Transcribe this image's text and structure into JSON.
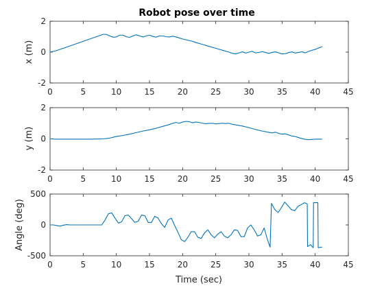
{
  "chart_data": [
    {
      "type": "line",
      "title": "Robot pose over time",
      "xlabel": "",
      "ylabel": "x (m)",
      "xlim": [
        0,
        45
      ],
      "ylim": [
        -2,
        2
      ],
      "xticks": [
        "0",
        "5",
        "10",
        "15",
        "20",
        "25",
        "30",
        "35",
        "40",
        "45"
      ],
      "yticks": [
        "-2",
        "0",
        "2"
      ],
      "grid": false,
      "series": [
        {
          "color": "#0072BD",
          "x": [
            0,
            1,
            2,
            3,
            4,
            5,
            6,
            7,
            8,
            8.5,
            9,
            9.5,
            10,
            10.5,
            11,
            11.5,
            12,
            12.5,
            13,
            13.5,
            14,
            14.5,
            15,
            15.5,
            16,
            16.5,
            17,
            17.5,
            18,
            18.5,
            19,
            19.5,
            20,
            20.5,
            21,
            21.5,
            22,
            23,
            24,
            25,
            26,
            27,
            27.5,
            28,
            28.5,
            29,
            29.5,
            30,
            30.5,
            31,
            31.5,
            32,
            32.5,
            33,
            33.5,
            34,
            34.5,
            35,
            35.5,
            36,
            36.5,
            37,
            37.5,
            38,
            38.5,
            39,
            40,
            41
          ],
          "y": [
            0.0,
            0.1,
            0.25,
            0.4,
            0.55,
            0.7,
            0.85,
            1.0,
            1.15,
            1.15,
            1.05,
            0.97,
            0.98,
            1.1,
            1.1,
            1.0,
            0.95,
            1.05,
            1.12,
            1.05,
            0.98,
            1.05,
            1.1,
            1.02,
            0.97,
            1.05,
            1.05,
            1.0,
            0.98,
            1.03,
            0.98,
            0.92,
            0.85,
            0.8,
            0.75,
            0.7,
            0.62,
            0.5,
            0.37,
            0.25,
            0.12,
            0.0,
            -0.08,
            -0.12,
            -0.05,
            0.02,
            -0.06,
            0.0,
            0.05,
            -0.05,
            -0.02,
            0.03,
            -0.02,
            -0.08,
            -0.02,
            0.02,
            -0.05,
            -0.12,
            -0.1,
            -0.03,
            0.02,
            -0.06,
            -0.02,
            0.02,
            -0.05,
            0.05,
            0.18,
            0.35
          ]
        }
      ]
    },
    {
      "type": "line",
      "title": "",
      "xlabel": "",
      "ylabel": "y (m)",
      "xlim": [
        0,
        45
      ],
      "ylim": [
        -2,
        2
      ],
      "xticks": [
        "0",
        "5",
        "10",
        "15",
        "20",
        "25",
        "30",
        "35",
        "40",
        "45"
      ],
      "yticks": [
        "-2",
        "0",
        "2"
      ],
      "grid": false,
      "series": [
        {
          "color": "#0072BD",
          "x": [
            0,
            1,
            2,
            3,
            4,
            5,
            6,
            7,
            7.5,
            8,
            8.5,
            9,
            9.5,
            10,
            11,
            12,
            13,
            14,
            15,
            16,
            17,
            18,
            18.5,
            19,
            19.5,
            20,
            20.5,
            21,
            21.5,
            22,
            22.5,
            23,
            23.5,
            24,
            24.5,
            25,
            25.5,
            26,
            26.5,
            27,
            27.5,
            28,
            29,
            30,
            31,
            32,
            33,
            33.5,
            34,
            34.5,
            35,
            35.5,
            36,
            36.5,
            37,
            37.5,
            38,
            38.5,
            39,
            40,
            41
          ],
          "y": [
            0.0,
            -0.02,
            -0.02,
            -0.02,
            -0.02,
            -0.02,
            -0.02,
            -0.01,
            -0.01,
            0.0,
            0.02,
            0.05,
            0.1,
            0.15,
            0.22,
            0.3,
            0.4,
            0.5,
            0.58,
            0.68,
            0.8,
            0.92,
            1.0,
            1.05,
            1.0,
            1.08,
            1.12,
            1.1,
            1.03,
            1.08,
            1.05,
            1.0,
            0.97,
            0.99,
            1.0,
            0.96,
            0.98,
            1.0,
            0.98,
            1.0,
            0.93,
            0.9,
            0.82,
            0.72,
            0.6,
            0.5,
            0.42,
            0.38,
            0.43,
            0.35,
            0.3,
            0.32,
            0.25,
            0.18,
            0.15,
            0.08,
            0.02,
            -0.03,
            -0.05,
            -0.02,
            -0.02
          ]
        }
      ]
    },
    {
      "type": "line",
      "title": "",
      "xlabel": "Time (sec)",
      "ylabel": "Angle (deg)",
      "xlim": [
        0,
        45
      ],
      "ylim": [
        -500,
        500
      ],
      "xticks": [
        "0",
        "5",
        "10",
        "15",
        "20",
        "25",
        "30",
        "35",
        "40",
        "45"
      ],
      "yticks": [
        "-500",
        "0",
        "500"
      ],
      "grid": false,
      "series": [
        {
          "color": "#0072BD",
          "x": [
            0,
            0.5,
            1,
            1.5,
            2,
            2.5,
            3,
            4,
            5,
            6,
            7,
            7.8,
            8.3,
            8.8,
            9.3,
            9.8,
            10.3,
            10.8,
            11.3,
            11.8,
            12.3,
            12.8,
            13.3,
            13.8,
            14.3,
            14.8,
            15.3,
            15.8,
            16.3,
            16.8,
            17.3,
            17.8,
            18.3,
            18.8,
            19.3,
            19.8,
            20.3,
            20.8,
            21.3,
            21.8,
            22.3,
            22.8,
            23.3,
            23.8,
            24.3,
            24.8,
            25.3,
            25.8,
            26.3,
            26.8,
            27.3,
            27.8,
            28.3,
            28.8,
            29.3,
            29.8,
            30.3,
            30.8,
            31.3,
            31.8,
            32.3,
            32.8,
            33.2,
            33.4,
            33.9,
            34.4,
            34.9,
            35.4,
            35.9,
            36.4,
            36.9,
            37.4,
            37.9,
            38.4,
            38.8,
            38.85,
            39.3,
            39.7,
            39.75,
            40.4,
            40.45,
            40.9,
            41
          ],
          "y": [
            0,
            0,
            -10,
            -20,
            -5,
            5,
            0,
            0,
            0,
            0,
            0,
            0,
            80,
            180,
            195,
            110,
            30,
            50,
            150,
            160,
            100,
            40,
            60,
            160,
            150,
            40,
            40,
            140,
            110,
            20,
            -40,
            80,
            110,
            -10,
            -120,
            -240,
            -270,
            -200,
            -110,
            -110,
            -200,
            -220,
            -130,
            -80,
            -160,
            -210,
            -150,
            -110,
            -180,
            -210,
            -160,
            -80,
            -90,
            -190,
            -190,
            -50,
            0,
            -80,
            -180,
            -160,
            -50,
            -240,
            -360,
            350,
            250,
            200,
            280,
            370,
            310,
            250,
            230,
            300,
            330,
            360,
            340,
            -350,
            -320,
            -370,
            360,
            360,
            -370,
            -360,
            -360
          ]
        }
      ]
    }
  ]
}
